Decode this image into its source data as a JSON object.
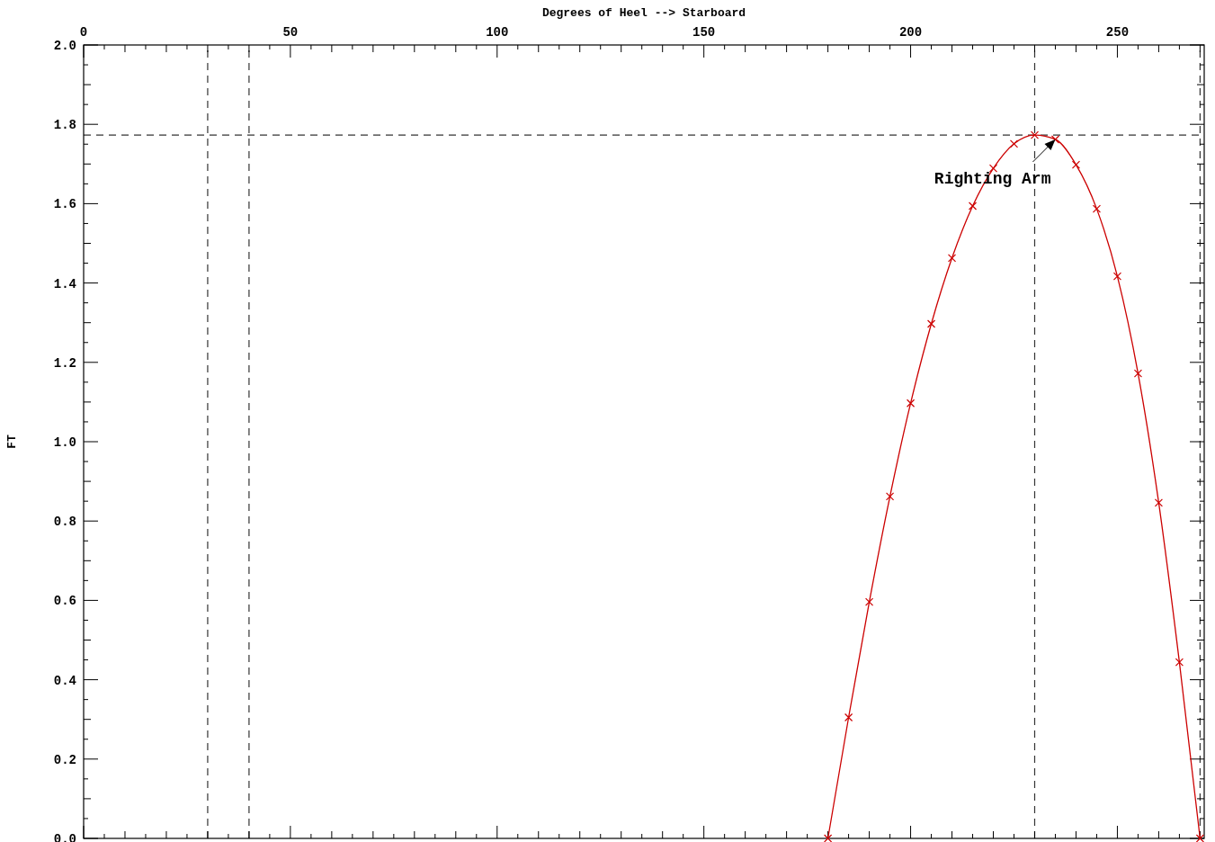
{
  "chart_data": {
    "type": "line",
    "xlabel": "Degrees of Heel --> Starboard",
    "ylabel": "FT",
    "x": [
      180,
      185,
      190,
      195,
      200,
      205,
      210,
      215,
      220,
      225,
      230,
      235,
      240,
      245,
      250,
      255,
      260,
      265,
      270
    ],
    "series": [
      {
        "color": "#cc0000",
        "values": [
          0.0,
          0.305,
          0.596,
          0.862,
          1.097,
          1.297,
          1.463,
          1.594,
          1.689,
          1.751,
          1.773,
          1.762,
          1.698,
          1.587,
          1.417,
          1.172,
          0.846,
          0.444,
          0.0
        ]
      }
    ],
    "marker": "cross",
    "line_style": "solid",
    "grid": false,
    "xlim": [
      0,
      271
    ],
    "ylim": [
      0,
      2.0
    ],
    "xticks": [
      0,
      {
        "value": 5,
        "label": null
      },
      {
        "value": 10,
        "label": null
      },
      {
        "value": 15,
        "label": null
      },
      {
        "value": 20,
        "label": null
      },
      {
        "value": 25,
        "label": null
      },
      {
        "value": 30,
        "label": null
      },
      {
        "value": 35,
        "label": null
      },
      {
        "value": 40,
        "label": null
      },
      {
        "value": 45,
        "label": null
      },
      50,
      {
        "value": 55,
        "label": null
      },
      {
        "value": 60,
        "label": null
      },
      {
        "value": 65,
        "label": null
      },
      {
        "value": 70,
        "label": null
      },
      {
        "value": 75,
        "label": null
      },
      {
        "value": 80,
        "label": null
      },
      {
        "value": 85,
        "label": null
      },
      {
        "value": 90,
        "label": null
      },
      {
        "value": 95,
        "label": null
      },
      100,
      {
        "value": 105,
        "label": null
      },
      {
        "value": 110,
        "label": null
      },
      {
        "value": 115,
        "label": null
      },
      {
        "value": 120,
        "label": null
      },
      {
        "value": 125,
        "label": null
      },
      {
        "value": 130,
        "label": null
      },
      {
        "value": 135,
        "label": null
      },
      {
        "value": 140,
        "label": null
      },
      {
        "value": 145,
        "label": null
      },
      150,
      {
        "value": 155,
        "label": null
      },
      {
        "value": 160,
        "label": null
      },
      {
        "value": 165,
        "label": null
      },
      {
        "value": 170,
        "label": null
      },
      {
        "value": 175,
        "label": null
      },
      {
        "value": 180,
        "label": null
      },
      {
        "value": 185,
        "label": null
      },
      {
        "value": 190,
        "label": null
      },
      {
        "value": 195,
        "label": null
      },
      200,
      {
        "value": 205,
        "label": null
      },
      {
        "value": 210,
        "label": null
      },
      {
        "value": 215,
        "label": null
      },
      {
        "value": 220,
        "label": null
      },
      {
        "value": 225,
        "label": null
      },
      {
        "value": 230,
        "label": null
      },
      {
        "value": 235,
        "label": null
      },
      {
        "value": 240,
        "label": null
      },
      {
        "value": 245,
        "label": null
      },
      250,
      {
        "value": 255,
        "label": null
      },
      {
        "value": 260,
        "label": null
      },
      {
        "value": 265,
        "label": null
      },
      {
        "value": 270,
        "label": null
      }
    ],
    "yticks": [
      {
        "value": 0,
        "label": "0.0"
      },
      {
        "value": 0.05,
        "label": null
      },
      {
        "value": 0.1,
        "label": null
      },
      {
        "value": 0.15,
        "label": null
      },
      {
        "value": 0.2,
        "label": "0.2"
      },
      {
        "value": 0.25,
        "label": null
      },
      {
        "value": 0.3,
        "label": null
      },
      {
        "value": 0.35,
        "label": null
      },
      {
        "value": 0.4,
        "label": "0.4"
      },
      {
        "value": 0.45,
        "label": null
      },
      {
        "value": 0.5,
        "label": null
      },
      {
        "value": 0.55,
        "label": null
      },
      {
        "value": 0.6,
        "label": "0.6"
      },
      {
        "value": 0.65,
        "label": null
      },
      {
        "value": 0.7,
        "label": null
      },
      {
        "value": 0.75,
        "label": null
      },
      {
        "value": 0.8,
        "label": "0.8"
      },
      {
        "value": 0.85,
        "label": null
      },
      {
        "value": 0.9,
        "label": null
      },
      {
        "value": 0.95,
        "label": null
      },
      {
        "value": 1.0,
        "label": "1.0"
      },
      {
        "value": 1.05,
        "label": null
      },
      {
        "value": 1.1,
        "label": null
      },
      {
        "value": 1.15,
        "label": null
      },
      {
        "value": 1.2,
        "label": "1.2"
      },
      {
        "value": 1.25,
        "label": null
      },
      {
        "value": 1.3,
        "label": null
      },
      {
        "value": 1.35,
        "label": null
      },
      {
        "value": 1.4,
        "label": "1.4"
      },
      {
        "value": 1.45,
        "label": null
      },
      {
        "value": 1.5,
        "label": null
      },
      {
        "value": 1.55,
        "label": null
      },
      {
        "value": 1.6,
        "label": "1.6"
      },
      {
        "value": 1.65,
        "label": null
      },
      {
        "value": 1.7,
        "label": null
      },
      {
        "value": 1.75,
        "label": null
      },
      {
        "value": 1.8,
        "label": "1.8"
      },
      {
        "value": 1.85,
        "label": null
      },
      {
        "value": 1.9,
        "label": null
      },
      {
        "value": 1.95,
        "label": null
      },
      {
        "value": 2.0,
        "label": "2.0"
      }
    ],
    "ref_lines": [
      {
        "axis": "x",
        "value": 30,
        "line_style": "dashed",
        "color": "#333333"
      },
      {
        "axis": "x",
        "value": 40,
        "line_style": "dashed",
        "color": "#333333"
      },
      {
        "axis": "x",
        "value": 230,
        "line_style": "dashed",
        "color": "#333333"
      },
      {
        "axis": "x",
        "value": 270,
        "line_style": "dashed",
        "color": "#333333"
      },
      {
        "axis": "y",
        "value": 1.773,
        "line_style": "dashed",
        "color": "#333333"
      }
    ],
    "annotations": [
      {
        "text": "Righting Arm",
        "x": 235,
        "y": 1.762
      }
    ]
  }
}
